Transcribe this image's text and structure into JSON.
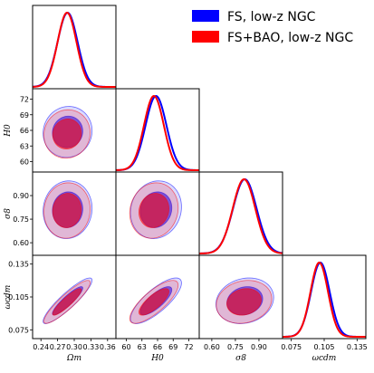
{
  "chart_data": {
    "type": "corner-plot",
    "legend": {
      "placement": "top-right",
      "entries": [
        {
          "label": "FS, low-z NGC",
          "color": "#0000ff"
        },
        {
          "label": "FS+BAO, low-z NGC",
          "color": "#ff0000"
        }
      ]
    },
    "parameters": [
      {
        "key": "omega_m",
        "label": "Ωm",
        "range": [
          0.225,
          0.375
        ],
        "ticks": [
          "0.24",
          "0.27",
          "0.30",
          "0.33",
          "0.36"
        ]
      },
      {
        "key": "H0",
        "label": "H0",
        "range": [
          58,
          74
        ],
        "ticks": [
          "60",
          "63",
          "66",
          "69",
          "72"
        ]
      },
      {
        "key": "sigma8",
        "label": "σ8",
        "range": [
          0.52,
          1.05
        ],
        "ticks": [
          "0.60",
          "0.75",
          "0.90"
        ]
      },
      {
        "key": "omega_cdm",
        "label": "ωcdm",
        "range": [
          0.067,
          0.143
        ],
        "ticks": [
          "0.075",
          "0.105",
          "0.135"
        ]
      }
    ],
    "series": [
      {
        "name": "FS, low-z NGC",
        "color": "#0000ff",
        "mean": {
          "omega_m": 0.288,
          "H0": 65.7,
          "sigma8": 0.81,
          "omega_cdm": 0.1015
        },
        "sd": {
          "omega_m": 0.018,
          "H0": 2.0,
          "sigma8": 0.075,
          "omega_cdm": 0.0085
        }
      },
      {
        "name": "FS+BAO, low-z NGC",
        "color": "#ff0000",
        "mean": {
          "omega_m": 0.287,
          "H0": 65.3,
          "sigma8": 0.805,
          "omega_cdm": 0.1005
        },
        "sd": {
          "omega_m": 0.017,
          "H0": 1.9,
          "sigma8": 0.072,
          "omega_cdm": 0.008
        }
      }
    ],
    "correlations": {
      "omega_m|H0": 0.05,
      "omega_m|sigma8": 0.05,
      "H0|sigma8": 0.1,
      "omega_m|omega_cdm": 0.9,
      "H0|omega_cdm": 0.78,
      "sigma8|omega_cdm": 0.15
    },
    "grid": false
  }
}
